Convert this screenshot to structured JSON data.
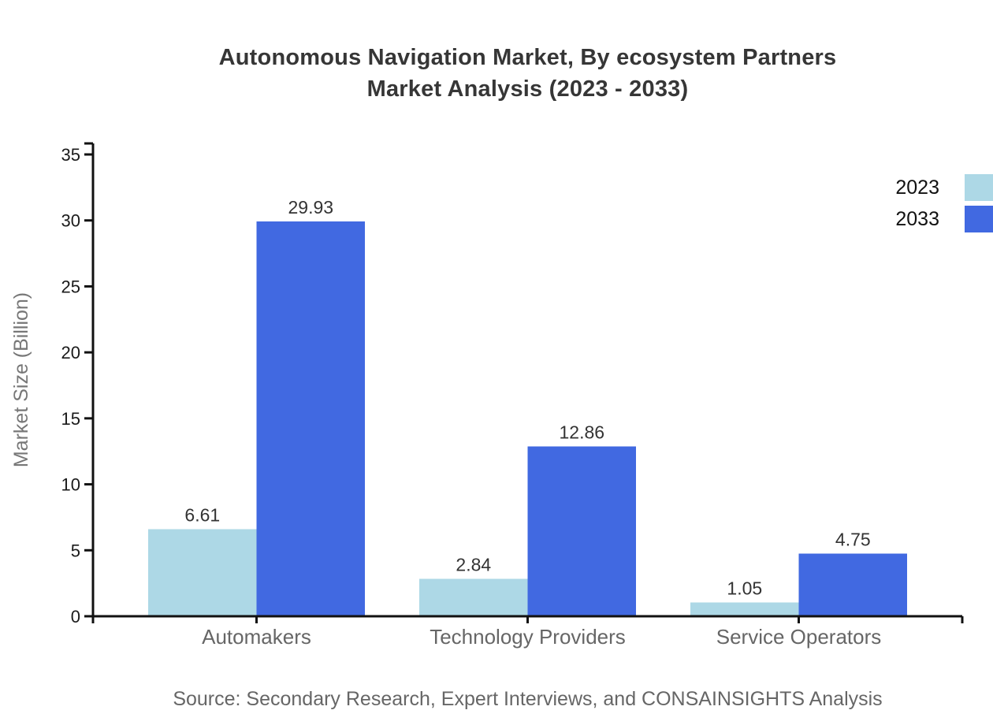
{
  "title": {
    "line1": "Autonomous Navigation Market, By ecosystem Partners",
    "line2": "Market Analysis (2023 - 2033)"
  },
  "source": "Source: Secondary Research, Expert Interviews, and CONSAINSIGHTS Analysis",
  "chart_data": {
    "type": "bar",
    "categories": [
      "Automakers",
      "Technology Providers",
      "Service Operators"
    ],
    "series": [
      {
        "name": "2023",
        "color": "#ADD8E6",
        "values": [
          6.61,
          2.84,
          1.05
        ]
      },
      {
        "name": "2033",
        "color": "#4169E1",
        "values": [
          29.93,
          12.86,
          4.75
        ]
      }
    ],
    "title": "Autonomous Navigation Market, By ecosystem Partners Market Analysis (2023 - 2033)",
    "xlabel": "",
    "ylabel": "Market Size (Billion)",
    "ylim": [
      0,
      35
    ],
    "yticks": [
      0,
      5,
      10,
      15,
      20,
      25,
      30,
      35
    ],
    "grid": false,
    "legend_position": "top-right",
    "value_labels": true,
    "value_label_format": "2-decimals"
  },
  "colors": {
    "bar_2023": "#ADD8E6",
    "bar_2033": "#4169E1",
    "axis": "#111111",
    "title_text": "#363636",
    "category_text": "#666666",
    "value_text": "#333333",
    "ylabel_text": "#777777",
    "source_text": "#666666",
    "legend_text": "#111111",
    "background": "#ffffff"
  }
}
